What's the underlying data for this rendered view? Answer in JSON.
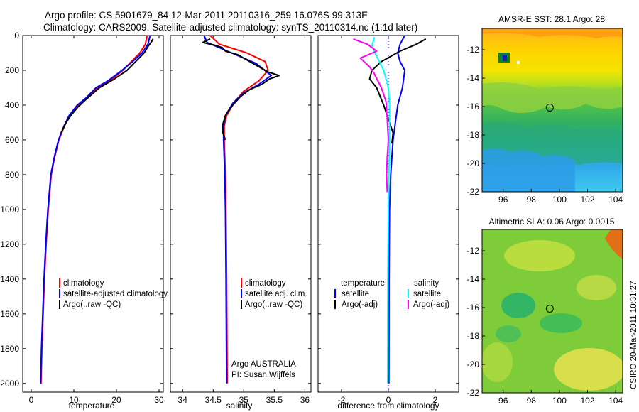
{
  "header": {
    "line1": "Argo profile: CS 5901679_84 12-Mar-2011 20110316_259 16.076S 99.313E",
    "line2": "Climatology: CARS2009. Satellite-adjusted climatology: synTS_20110314.nc (1.1d later)"
  },
  "credit": "CSIRO 20-Mar-2011 10:31:27",
  "colors": {
    "climatology": "#ff0000",
    "satellite": "#0000ff",
    "argo": "#000000",
    "sal_satellite": "#00ffff",
    "sal_argo": "#ff00ff"
  },
  "chart_data": [
    {
      "type": "line",
      "name": "temperature",
      "xlabel": "temperature",
      "ylabel": "",
      "xlim": [
        -2,
        31
      ],
      "ylim": [
        2050,
        0
      ],
      "xticks": [
        0,
        10,
        20,
        30
      ],
      "yticks": [
        0,
        200,
        400,
        600,
        800,
        1000,
        1200,
        1400,
        1600,
        1800,
        2000
      ],
      "series": [
        {
          "name": "climatology",
          "color": "#ff0000",
          "points": [
            [
              27.2,
              0
            ],
            [
              26.8,
              50
            ],
            [
              25.5,
              100
            ],
            [
              23.5,
              150
            ],
            [
              21.5,
              200
            ],
            [
              18.5,
              260
            ],
            [
              15.5,
              300
            ],
            [
              13,
              360
            ],
            [
              11,
              400
            ],
            [
              9,
              460
            ],
            [
              7.8,
              520
            ],
            [
              6.5,
              600
            ],
            [
              5.5,
              700
            ],
            [
              4.7,
              800
            ],
            [
              4,
              1000
            ],
            [
              3.5,
              1200
            ],
            [
              3.1,
              1400
            ],
            [
              2.8,
              1600
            ],
            [
              2.5,
              1800
            ],
            [
              2.3,
              2000
            ]
          ]
        },
        {
          "name": "satellite-adjusted climatology",
          "color": "#0000ff",
          "points": [
            [
              27.9,
              0
            ],
            [
              27.4,
              50
            ],
            [
              26,
              100
            ],
            [
              23.8,
              150
            ],
            [
              21.3,
              200
            ],
            [
              18,
              260
            ],
            [
              15.2,
              300
            ],
            [
              12.8,
              360
            ],
            [
              10.8,
              400
            ],
            [
              8.9,
              460
            ],
            [
              7.7,
              520
            ],
            [
              6.4,
              600
            ],
            [
              5.4,
              700
            ],
            [
              4.6,
              800
            ],
            [
              3.9,
              1000
            ],
            [
              3.4,
              1200
            ],
            [
              3.0,
              1400
            ],
            [
              2.7,
              1600
            ],
            [
              2.4,
              1800
            ],
            [
              2.2,
              2000
            ]
          ]
        },
        {
          "name": "Argo(..raw -QC)",
          "color": "#000000",
          "points": [
            [
              28.6,
              20
            ],
            [
              28.1,
              40
            ],
            [
              27.5,
              60
            ],
            [
              26.5,
              100
            ],
            [
              24.5,
              150
            ],
            [
              22.5,
              200
            ],
            [
              19.5,
              250
            ],
            [
              16,
              300
            ],
            [
              13.2,
              360
            ],
            [
              11,
              410
            ],
            [
              9.3,
              460
            ],
            [
              8.2,
              500
            ],
            [
              7,
              560
            ]
          ]
        }
      ],
      "legend": [
        {
          "label": "climatology",
          "color": "#ff0000"
        },
        {
          "label": "satellite-adjusted climatology",
          "color": "#0000ff"
        },
        {
          "label": "Argo(..raw -QC)",
          "color": "#000000"
        }
      ]
    },
    {
      "type": "line",
      "name": "salinity",
      "xlabel": "salinity",
      "ylabel": "",
      "xlim": [
        33.8,
        36.1
      ],
      "ylim": [
        2050,
        0
      ],
      "xticks": [
        34,
        34.5,
        35,
        35.5,
        36
      ],
      "xtick_labels": [
        "34",
        "34.5",
        "35",
        "35.5",
        "36"
      ],
      "yticks": [
        0,
        200,
        400,
        600,
        800,
        1000,
        1200,
        1400,
        1600,
        1800,
        2000
      ],
      "series": [
        {
          "name": "climatology",
          "color": "#ff0000",
          "points": [
            [
              34.45,
              0
            ],
            [
              34.6,
              50
            ],
            [
              35.05,
              100
            ],
            [
              35.35,
              150
            ],
            [
              35.4,
              200
            ],
            [
              35.25,
              260
            ],
            [
              35.0,
              320
            ],
            [
              34.85,
              380
            ],
            [
              34.72,
              460
            ],
            [
              34.68,
              520
            ],
            [
              34.68,
              600
            ],
            [
              34.7,
              800
            ],
            [
              34.71,
              1000
            ],
            [
              34.72,
              1400
            ],
            [
              34.73,
              2000
            ]
          ]
        },
        {
          "name": "satellite adj. clim.",
          "color": "#0000ff",
          "points": [
            [
              34.35,
              0
            ],
            [
              34.4,
              40
            ],
            [
              34.8,
              100
            ],
            [
              35.2,
              160
            ],
            [
              35.45,
              230
            ],
            [
              35.25,
              280
            ],
            [
              35.0,
              330
            ],
            [
              34.82,
              390
            ],
            [
              34.7,
              460
            ],
            [
              34.67,
              520
            ],
            [
              34.67,
              600
            ],
            [
              34.69,
              800
            ],
            [
              34.7,
              1000
            ],
            [
              34.71,
              1400
            ],
            [
              34.72,
              2000
            ]
          ]
        },
        {
          "name": "Argo(..raw -QC)",
          "color": "#000000",
          "points": [
            [
              34.45,
              20
            ],
            [
              34.33,
              40
            ],
            [
              34.52,
              55
            ],
            [
              34.65,
              70
            ],
            [
              34.7,
              90
            ],
            [
              34.9,
              110
            ],
            [
              35.1,
              150
            ],
            [
              35.25,
              180
            ],
            [
              35.4,
              210
            ],
            [
              35.58,
              230
            ],
            [
              35.42,
              250
            ],
            [
              35.3,
              280
            ],
            [
              35.1,
              310
            ],
            [
              34.95,
              350
            ],
            [
              34.82,
              400
            ],
            [
              34.7,
              460
            ],
            [
              34.65,
              520
            ],
            [
              34.66,
              560
            ],
            [
              34.7,
              600
            ]
          ]
        }
      ],
      "legend": [
        {
          "label": "climatology",
          "color": "#ff0000"
        },
        {
          "label": "satellite adj. clim.",
          "color": "#0000ff"
        },
        {
          "label": "Argo(..raw -QC)",
          "color": "#000000"
        }
      ],
      "annotation": [
        "Argo AUSTRALIA",
        "PI: Susan Wijffels"
      ]
    },
    {
      "type": "line",
      "name": "difference from climatology",
      "xlabel": "difference from climatology",
      "ylabel": "",
      "xlim": [
        -3,
        3
      ],
      "ylim": [
        2050,
        0
      ],
      "xticks": [
        -2,
        0,
        2
      ],
      "yticks": [
        0,
        200,
        400,
        600,
        800,
        1000,
        1200,
        1400,
        1600,
        1800,
        2000
      ],
      "series": [
        {
          "name": "temperature satellite",
          "color": "#0000ff",
          "points": [
            [
              0.7,
              0
            ],
            [
              0.5,
              50
            ],
            [
              0.4,
              100
            ],
            [
              0.5,
              150
            ],
            [
              0.7,
              200
            ],
            [
              0.6,
              300
            ],
            [
              0.4,
              400
            ],
            [
              0.3,
              500
            ],
            [
              0.2,
              600
            ],
            [
              0.1,
              800
            ],
            [
              0.05,
              1000
            ],
            [
              0.03,
              1400
            ],
            [
              0.02,
              2000
            ]
          ]
        },
        {
          "name": "temperature Argo(-adj)",
          "color": "#000000",
          "points": [
            [
              1.6,
              20
            ],
            [
              1.2,
              50
            ],
            [
              0.5,
              90
            ],
            [
              -0.3,
              150
            ],
            [
              -0.7,
              200
            ],
            [
              -0.8,
              250
            ],
            [
              -0.5,
              300
            ],
            [
              -0.2,
              400
            ],
            [
              0.05,
              500
            ],
            [
              0.2,
              560
            ],
            [
              0.15,
              620
            ]
          ]
        },
        {
          "name": "salinity satellite",
          "color": "#00ffff",
          "points": [
            [
              -0.6,
              10
            ],
            [
              -0.7,
              60
            ],
            [
              -0.5,
              120
            ],
            [
              -0.2,
              200
            ],
            [
              0.0,
              300
            ],
            [
              0.05,
              400
            ],
            [
              0.05,
              600
            ],
            [
              0.02,
              800
            ],
            [
              0.0,
              1000
            ],
            [
              -0.02,
              1400
            ],
            [
              -0.03,
              2000
            ]
          ]
        },
        {
          "name": "salinity Argo(-adj)",
          "color": "#ff00ff",
          "points": [
            [
              -1.5,
              20
            ],
            [
              -0.9,
              50
            ],
            [
              -0.5,
              90
            ],
            [
              -1.2,
              130
            ],
            [
              -0.8,
              180
            ],
            [
              -0.6,
              220
            ],
            [
              -0.3,
              300
            ],
            [
              -0.1,
              380
            ],
            [
              -0.05,
              480
            ],
            [
              0.0,
              600
            ],
            [
              -0.05,
              700
            ],
            [
              -0.08,
              800
            ],
            [
              -0.05,
              900
            ]
          ]
        }
      ],
      "legend_titles": [
        "temperature",
        "salinity"
      ],
      "legend": [
        {
          "label": "satellite",
          "color": "#0000ff"
        },
        {
          "label": "Argo(-adj)",
          "color": "#000000"
        },
        {
          "label": "satellite",
          "color": "#00ffff"
        },
        {
          "label": "Argo(-adj)",
          "color": "#ff00ff"
        }
      ]
    },
    {
      "type": "heatmap",
      "name": "sst-map",
      "title": "AMSR-E SST: 28.1  Argo: 28",
      "xlim": [
        94.5,
        104.5
      ],
      "ylim": [
        -22,
        -10.5
      ],
      "xticks": [
        96,
        98,
        100,
        102,
        104
      ],
      "yticks": [
        -12,
        -14,
        -16,
        -18,
        -20,
        -22
      ],
      "marker": {
        "lon": 99.313,
        "lat": -16.076
      }
    },
    {
      "type": "heatmap",
      "name": "sla-map",
      "title": "Altimetric SLA: 0.06  Argo: 0.0015",
      "xlim": [
        94.5,
        104.5
      ],
      "ylim": [
        -22,
        -10.5
      ],
      "xticks": [
        96,
        98,
        100,
        102,
        104
      ],
      "yticks": [
        -12,
        -14,
        -16,
        -18,
        -20,
        -22
      ],
      "marker": {
        "lon": 99.313,
        "lat": -16.076
      }
    }
  ]
}
